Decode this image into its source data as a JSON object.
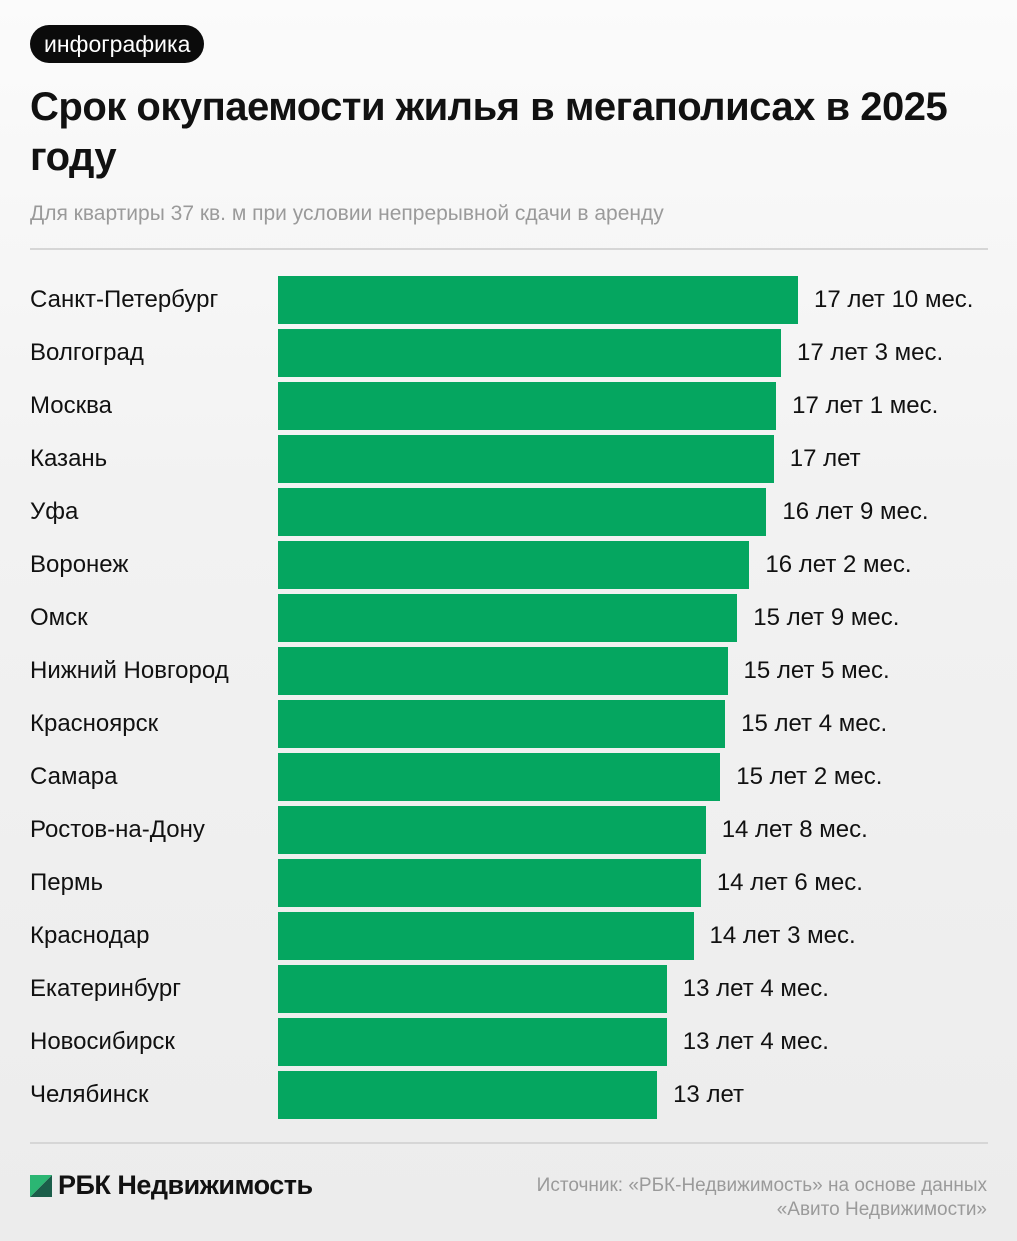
{
  "badge": "инфографика",
  "title": "Срок окупаемости жилья в мегаполисах в 2025 году",
  "subtitle": "Для квартиры 37 кв. м при условии непрерывной сдачи в аренду",
  "footer": {
    "logo_text": "РБК Недвижимость",
    "source_line1": "Источник: «РБК-Недвижимость» на основе данных",
    "source_line2": "«Авито Недвижимости»"
  },
  "colors": {
    "bar": "#05a660",
    "logo_dark": "#1b5e4a",
    "logo_light": "#2bb673"
  },
  "chart_data": {
    "type": "bar",
    "orientation": "horizontal",
    "title": "Срок окупаемости жилья в мегаполисах в 2025 году",
    "subtitle": "Для квартиры 37 кв. м при условии непрерывной сдачи в аренду",
    "grid": false,
    "categories": [
      "Санкт-Петербург",
      "Волгоград",
      "Москва",
      "Казань",
      "Уфа",
      "Воронеж",
      "Омск",
      "Нижний Новгород",
      "Красноярск",
      "Самара",
      "Ростов-на-Дону",
      "Пермь",
      "Краснодар",
      "Екатеринбург",
      "Новосибирск",
      "Челябинск"
    ],
    "values_years": [
      17.833,
      17.25,
      17.083,
      17,
      16.75,
      16.167,
      15.75,
      15.417,
      15.333,
      15.167,
      14.667,
      14.5,
      14.25,
      13.333,
      13.333,
      13
    ],
    "labels": [
      "17 лет 10 мес.",
      "17 лет 3 мес.",
      "17 лет 1 мес.",
      "17 лет",
      "16 лет 9 мес.",
      "16 лет 2 мес.",
      "15 лет 9 мес.",
      "15 лет 5 мес.",
      "15 лет 4 мес.",
      "15 лет 2 мес.",
      "14 лет 8 мес.",
      "14 лет 6 мес.",
      "14 лет 3 мес.",
      "13 лет 4 мес.",
      "13 лет 4 мес.",
      "13 лет"
    ]
  }
}
